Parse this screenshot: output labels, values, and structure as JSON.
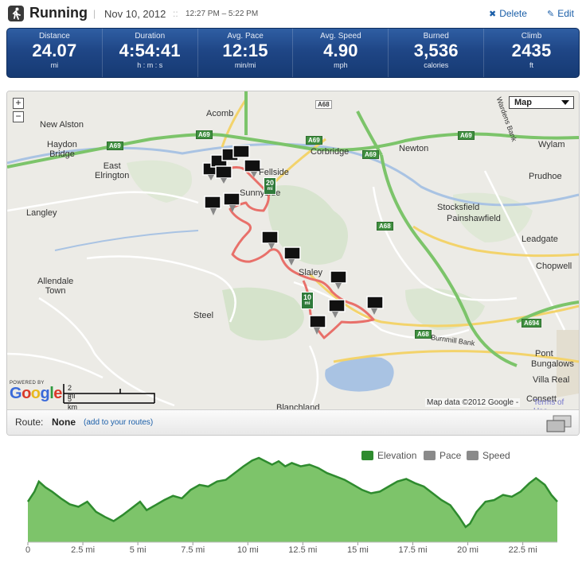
{
  "header": {
    "activity_icon": "running-figure-icon",
    "title": "Running",
    "separator1": "|",
    "date": "Nov 10, 2012",
    "separator2": "::",
    "time_range": "12:27 PM – 5:22 PM",
    "delete_label": "Delete",
    "edit_label": "Edit"
  },
  "stats": [
    {
      "label": "Distance",
      "value": "24.07",
      "unit": "mi"
    },
    {
      "label": "Duration",
      "value": "4:54:41",
      "unit": "h : m : s"
    },
    {
      "label": "Avg. Pace",
      "value": "12:15",
      "unit": "min/mi"
    },
    {
      "label": "Avg. Speed",
      "value": "4.90",
      "unit": "mph"
    },
    {
      "label": "Burned",
      "value": "3,536",
      "unit": "calories"
    },
    {
      "label": "Climb",
      "value": "2435",
      "unit": "ft"
    }
  ],
  "map": {
    "zoom_in": "+",
    "zoom_out": "−",
    "map_type": "Map",
    "towns": {
      "acomb": "Acomb",
      "new_alston": "New Alston",
      "haydon_bridge": "Haydon\nBridge",
      "east_elrington": "East\nElrington",
      "corbridge": "Corbridge",
      "newton": "Newton",
      "wylam": "Wylam",
      "prudhoe": "Prudhoe",
      "stocksfield": "Stocksfield",
      "painshawfield": "Painshawfield",
      "langley": "Langley",
      "hexham_hilltop": "Fellside",
      "sunnyside": "Sunnyside",
      "leadgate": "Leadgate",
      "chopwell": "Chopwell",
      "slaley": "Slaley",
      "allendale": "Allendale\nTown",
      "steel": "Steel",
      "pont": "Pont",
      "bungalows": "Bungalows",
      "villa_real": "Villa Real",
      "consett": "Consett",
      "blanchland": "Blanchland",
      "burnmill": "Burnmill Bank",
      "wardens": "Wardens Bank"
    },
    "road_tags": [
      "A68",
      "A69",
      "A69",
      "A69",
      "A69",
      "A69",
      "A68",
      "A68",
      "A694"
    ],
    "mile_markers": [
      {
        "num": "20",
        "unit": "mi"
      },
      {
        "num": "10",
        "unit": "mi"
      }
    ],
    "powered_by": "POWERED BY",
    "google": "Google",
    "scale_mi": "2 mi",
    "scale_km": "5 km",
    "credit": "Map data ©2012 Google -",
    "terms": "Terms of Use"
  },
  "route": {
    "label": "Route:",
    "value": "None",
    "link": "(add to your routes)"
  },
  "chart_data": {
    "type": "area",
    "legend": [
      "Elevation",
      "Pace",
      "Speed"
    ],
    "legend_colors": [
      "#2e8b2e",
      "#8a8a8a",
      "#8a8a8a"
    ],
    "x_unit": "mi",
    "xlim": [
      0,
      24.07
    ],
    "x_ticks": [
      0,
      2.5,
      5,
      7.5,
      10,
      12.5,
      15,
      17.5,
      20,
      22.5
    ],
    "x_tick_labels": [
      "0",
      "2.5 mi",
      "5 mi",
      "7.5 mi",
      "10 mi",
      "12.5 mi",
      "15 mi",
      "17.5 mi",
      "20 mi",
      "22.5 mi"
    ],
    "elevation_relative": [
      [
        0,
        0.48
      ],
      [
        0.3,
        0.6
      ],
      [
        0.5,
        0.72
      ],
      [
        0.8,
        0.65
      ],
      [
        1.1,
        0.6
      ],
      [
        1.5,
        0.52
      ],
      [
        1.9,
        0.45
      ],
      [
        2.3,
        0.42
      ],
      [
        2.7,
        0.48
      ],
      [
        3.1,
        0.36
      ],
      [
        3.5,
        0.3
      ],
      [
        3.9,
        0.25
      ],
      [
        4.3,
        0.32
      ],
      [
        4.7,
        0.4
      ],
      [
        5.1,
        0.48
      ],
      [
        5.4,
        0.38
      ],
      [
        5.8,
        0.44
      ],
      [
        6.2,
        0.5
      ],
      [
        6.6,
        0.55
      ],
      [
        7.0,
        0.52
      ],
      [
        7.4,
        0.62
      ],
      [
        7.8,
        0.68
      ],
      [
        8.2,
        0.66
      ],
      [
        8.6,
        0.72
      ],
      [
        9.0,
        0.74
      ],
      [
        9.4,
        0.82
      ],
      [
        9.8,
        0.9
      ],
      [
        10.2,
        0.97
      ],
      [
        10.5,
        1.0
      ],
      [
        10.8,
        0.96
      ],
      [
        11.1,
        0.92
      ],
      [
        11.4,
        0.96
      ],
      [
        11.7,
        0.9
      ],
      [
        12.0,
        0.94
      ],
      [
        12.4,
        0.9
      ],
      [
        12.8,
        0.92
      ],
      [
        13.2,
        0.88
      ],
      [
        13.6,
        0.82
      ],
      [
        14.0,
        0.78
      ],
      [
        14.4,
        0.74
      ],
      [
        14.8,
        0.68
      ],
      [
        15.2,
        0.62
      ],
      [
        15.6,
        0.58
      ],
      [
        16.0,
        0.6
      ],
      [
        16.4,
        0.66
      ],
      [
        16.8,
        0.72
      ],
      [
        17.2,
        0.75
      ],
      [
        17.6,
        0.7
      ],
      [
        18.0,
        0.66
      ],
      [
        18.4,
        0.58
      ],
      [
        18.8,
        0.5
      ],
      [
        19.2,
        0.44
      ],
      [
        19.6,
        0.3
      ],
      [
        19.9,
        0.18
      ],
      [
        20.1,
        0.22
      ],
      [
        20.4,
        0.36
      ],
      [
        20.8,
        0.48
      ],
      [
        21.2,
        0.5
      ],
      [
        21.6,
        0.56
      ],
      [
        22.0,
        0.54
      ],
      [
        22.4,
        0.6
      ],
      [
        22.8,
        0.7
      ],
      [
        23.1,
        0.76
      ],
      [
        23.5,
        0.68
      ],
      [
        23.8,
        0.56
      ],
      [
        24.07,
        0.48
      ]
    ]
  },
  "colors": {
    "stats_bar": "#1f4686",
    "route_line": "#e8706a",
    "elevation_fill": "#6fbe5a",
    "elevation_line": "#2e8b2e",
    "link": "#1a5ea8"
  }
}
